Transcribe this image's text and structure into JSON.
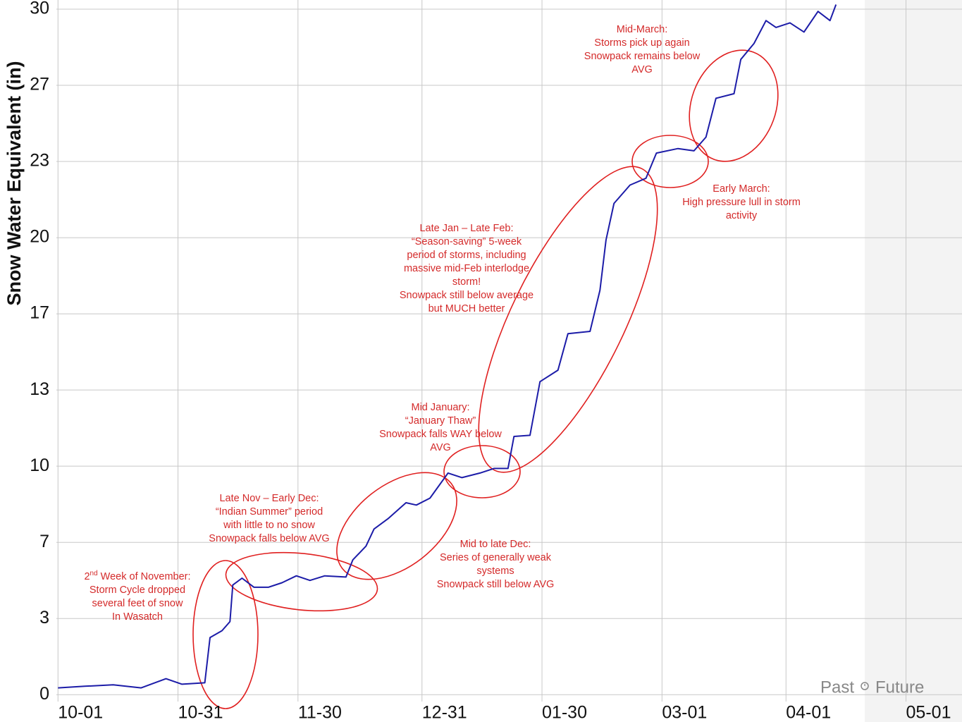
{
  "chart_data": {
    "type": "line",
    "y_label": "Snow Water Equivalent (in)",
    "xlim": [
      -0.4,
      226
    ],
    "ylim": [
      -0.3,
      30.4
    ],
    "xticks": [
      {
        "value": 0,
        "label": "10-01"
      },
      {
        "value": 30,
        "label": "10-31"
      },
      {
        "value": 60,
        "label": "11-30"
      },
      {
        "value": 91,
        "label": "12-31"
      },
      {
        "value": 121,
        "label": "01-30"
      },
      {
        "value": 151,
        "label": "03-01"
      },
      {
        "value": 182,
        "label": "04-01"
      },
      {
        "value": 212,
        "label": "05-01"
      }
    ],
    "yticks": [
      0,
      {
        "value": 3.333,
        "label": "3"
      },
      {
        "value": 6.667,
        "label": "7"
      },
      10,
      {
        "value": 13.333,
        "label": "13"
      },
      {
        "value": 16.667,
        "label": "17"
      },
      20,
      {
        "value": 23.333,
        "label": "23"
      },
      {
        "value": 26.667,
        "label": "27"
      },
      30
    ],
    "grid": true,
    "past_label": "Past",
    "future_label": "Future",
    "series": [
      {
        "color": "#1c1ca8",
        "x": [
          0,
          6.7,
          13.8,
          20.8,
          27,
          31,
          36.7,
          38,
          41,
          43,
          43.7,
          46,
          49,
          52.6,
          56,
          59.6,
          63,
          66.7,
          72,
          73.7,
          77,
          79,
          82.5,
          87,
          89.6,
          93,
          97.5,
          101,
          105.5,
          109,
          112.5,
          114,
          118,
          120.5,
          125,
          127.5,
          133,
          135.5,
          137,
          139,
          143,
          147,
          149.6,
          155,
          159,
          162,
          164.5,
          169,
          170.7,
          174,
          177,
          179.5,
          183,
          186.5,
          190,
          193,
          194.5
        ],
        "values": [
          0.3,
          0.37,
          0.43,
          0.3,
          0.7,
          0.46,
          0.52,
          2.5,
          2.8,
          3.2,
          4.8,
          5.1,
          4.7,
          4.7,
          4.9,
          5.2,
          5.0,
          5.2,
          5.15,
          5.9,
          6.5,
          7.25,
          7.7,
          8.4,
          8.3,
          8.6,
          9.7,
          9.5,
          9.7,
          9.9,
          9.9,
          11.3,
          11.35,
          13.7,
          14.2,
          15.8,
          15.9,
          17.7,
          19.9,
          21.5,
          22.3,
          22.6,
          23.7,
          23.9,
          23.8,
          24.4,
          26.1,
          26.3,
          27.8,
          28.5,
          29.5,
          29.2,
          29.4,
          29.0,
          29.9,
          29.5,
          30.2
        ]
      }
    ],
    "annotations": [
      {
        "lines": [
          "2",
          "nd",
          " Week of November:",
          "Storm Cycle dropped",
          "several feet of snow",
          "In Wasatch"
        ]
      },
      {
        "lines": [
          "Late Nov – Early Dec:",
          "“Indian Summer” period",
          "with little to no snow",
          "Snowpack falls below AVG"
        ]
      },
      {
        "lines": [
          "Mid to late Dec:",
          "Series of generally weak",
          "systems",
          "Snowpack still below AVG"
        ]
      },
      {
        "lines": [
          "Mid January:",
          "“January Thaw”",
          "Snowpack falls WAY below",
          "AVG"
        ]
      },
      {
        "lines": [
          "Late Jan – Late Feb:",
          "“Season-saving” 5-week",
          "period of storms, including",
          "massive mid-Feb interlodge",
          "storm!",
          "Snowpack still below average",
          "but MUCH better"
        ]
      },
      {
        "lines": [
          "Early March:",
          "High pressure lull in storm",
          "activity"
        ]
      },
      {
        "lines": [
          "Mid-March:",
          "Storms pick up again",
          "Snowpack remains below",
          "AVG"
        ]
      }
    ]
  }
}
